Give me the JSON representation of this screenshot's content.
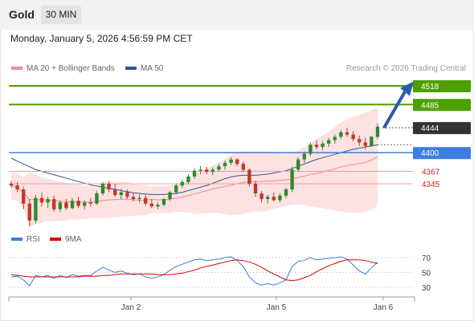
{
  "header": {
    "instrument": "Gold",
    "timeframe": "30 MIN",
    "datetime": "Monday, January 5, 2026 4:56:59 PM CET"
  },
  "legend": {
    "ma20": {
      "label": "MA 20 + Bollinger Bands",
      "color": "#f28b8b"
    },
    "ma50": {
      "label": "MA 50",
      "color": "#2f5597"
    },
    "source": "Research © 2026 Trading Central"
  },
  "colors": {
    "up_candle": "#2e8b2e",
    "down_candle": "#c0392b",
    "target_green": "#4da000",
    "pivot_blue": "#3d7de0",
    "support_red": "#d02020",
    "current_price": "#333333",
    "arrow": "#2a5caa",
    "bands_fill": "#fde2e2",
    "rsi": "#3d7de0",
    "rsi_ma": "#e00000"
  },
  "levels": [
    {
      "value": 4518,
      "label": "4518",
      "kind": "target"
    },
    {
      "value": 4485,
      "label": "4485",
      "kind": "target"
    },
    {
      "value": 4444,
      "label": "4444",
      "kind": "current"
    },
    {
      "value": 4400,
      "label": "4400",
      "kind": "pivot"
    },
    {
      "value": 4367,
      "label": "4367",
      "kind": "support"
    },
    {
      "value": 4345,
      "label": "4345",
      "kind": "support"
    }
  ],
  "rsi_panel": {
    "rsi_label": "RSI",
    "ma_label": "9MA",
    "ticks": [
      70,
      50,
      30
    ]
  },
  "x_axis": {
    "labels": [
      "Jan 2",
      "Jan 5",
      "Jan 6"
    ]
  },
  "chart_data": {
    "type": "candlestick",
    "title": "",
    "xlabel": "",
    "ylabel": "",
    "ylim": [
      4250,
      4535
    ],
    "grid": false,
    "legend_position": "top-left",
    "candles": [
      [
        4345,
        4350,
        4338,
        4342
      ],
      [
        4342,
        4348,
        4330,
        4335
      ],
      [
        4335,
        4340,
        4300,
        4310
      ],
      [
        4310,
        4318,
        4270,
        4280
      ],
      [
        4280,
        4325,
        4275,
        4320
      ],
      [
        4320,
        4330,
        4305,
        4312
      ],
      [
        4312,
        4322,
        4302,
        4318
      ],
      [
        4318,
        4324,
        4296,
        4300
      ],
      [
        4300,
        4315,
        4295,
        4312
      ],
      [
        4312,
        4318,
        4298,
        4302
      ],
      [
        4302,
        4320,
        4300,
        4315
      ],
      [
        4315,
        4322,
        4302,
        4306
      ],
      [
        4306,
        4316,
        4300,
        4312
      ],
      [
        4312,
        4320,
        4305,
        4310
      ],
      [
        4310,
        4332,
        4308,
        4328
      ],
      [
        4328,
        4348,
        4324,
        4345
      ],
      [
        4345,
        4350,
        4330,
        4335
      ],
      [
        4335,
        4345,
        4322,
        4325
      ],
      [
        4325,
        4336,
        4318,
        4330
      ],
      [
        4330,
        4335,
        4318,
        4322
      ],
      [
        4322,
        4330,
        4314,
        4318
      ],
      [
        4318,
        4326,
        4312,
        4320
      ],
      [
        4320,
        4325,
        4306,
        4310
      ],
      [
        4310,
        4318,
        4302,
        4305
      ],
      [
        4305,
        4312,
        4300,
        4308
      ],
      [
        4308,
        4320,
        4305,
        4318
      ],
      [
        4318,
        4332,
        4315,
        4330
      ],
      [
        4330,
        4345,
        4326,
        4342
      ],
      [
        4342,
        4352,
        4338,
        4348
      ],
      [
        4348,
        4362,
        4344,
        4358
      ],
      [
        4358,
        4372,
        4354,
        4368
      ],
      [
        4368,
        4376,
        4362,
        4370
      ],
      [
        4370,
        4375,
        4362,
        4366
      ],
      [
        4366,
        4374,
        4360,
        4370
      ],
      [
        4370,
        4380,
        4366,
        4376
      ],
      [
        4376,
        4386,
        4370,
        4382
      ],
      [
        4382,
        4392,
        4378,
        4388
      ],
      [
        4388,
        4390,
        4376,
        4380
      ],
      [
        4380,
        4384,
        4366,
        4370
      ],
      [
        4370,
        4372,
        4340,
        4345
      ],
      [
        4345,
        4350,
        4322,
        4328
      ],
      [
        4328,
        4332,
        4312,
        4318
      ],
      [
        4318,
        4326,
        4310,
        4322
      ],
      [
        4322,
        4330,
        4314,
        4316
      ],
      [
        4316,
        4328,
        4312,
        4324
      ],
      [
        4324,
        4338,
        4320,
        4335
      ],
      [
        4335,
        4375,
        4330,
        4370
      ],
      [
        4370,
        4392,
        4366,
        4388
      ],
      [
        4388,
        4402,
        4382,
        4398
      ],
      [
        4398,
        4418,
        4394,
        4414
      ],
      [
        4414,
        4422,
        4406,
        4410
      ],
      [
        4410,
        4420,
        4404,
        4416
      ],
      [
        4416,
        4426,
        4410,
        4422
      ],
      [
        4422,
        4432,
        4416,
        4428
      ],
      [
        4428,
        4440,
        4424,
        4436
      ],
      [
        4436,
        4444,
        4428,
        4432
      ],
      [
        4432,
        4438,
        4420,
        4424
      ],
      [
        4424,
        4430,
        4412,
        4418
      ],
      [
        4418,
        4426,
        4406,
        4412
      ],
      [
        4412,
        4430,
        4410,
        4428
      ],
      [
        4428,
        4452,
        4424,
        4446
      ]
    ],
    "ma50": [
      4390,
      4385,
      4380,
      4375,
      4370,
      4367,
      4364,
      4361,
      4358,
      4355,
      4352,
      4349,
      4346,
      4343,
      4341,
      4339,
      4337,
      4335,
      4333,
      4331,
      4329,
      4328,
      4327,
      4326,
      4326,
      4326,
      4327,
      4328,
      4330,
      4333,
      4336,
      4339,
      4342,
      4346,
      4350,
      4354,
      4357,
      4359,
      4360,
      4360,
      4360,
      4361,
      4362,
      4364,
      4366,
      4368,
      4372,
      4376,
      4380,
      4384,
      4388,
      4391,
      4394,
      4397,
      4400,
      4403,
      4406,
      4408,
      4410,
      4412,
      4414
    ],
    "rsi_values": [
      44,
      45,
      40,
      32,
      46,
      44,
      46,
      42,
      46,
      43,
      47,
      45,
      46,
      46,
      52,
      57,
      53,
      50,
      52,
      49,
      47,
      48,
      44,
      42,
      44,
      47,
      53,
      58,
      61,
      64,
      67,
      68,
      66,
      67,
      68,
      70,
      71,
      66,
      58,
      44,
      36,
      33,
      35,
      33,
      36,
      40,
      58,
      65,
      66,
      70,
      67,
      68,
      69,
      70,
      71,
      68,
      60,
      52,
      48,
      56,
      64
    ],
    "rsi_ma": [
      47,
      46,
      45,
      44,
      44,
      44,
      44,
      44,
      44,
      44,
      44,
      44,
      45,
      45,
      45,
      46,
      46,
      47,
      48,
      48,
      48,
      48,
      48,
      48,
      47,
      47,
      47,
      48,
      49,
      51,
      53,
      56,
      58,
      60,
      62,
      64,
      66,
      67,
      66,
      64,
      61,
      57,
      52,
      48,
      44,
      40,
      39,
      40,
      43,
      46,
      51,
      55,
      59,
      62,
      65,
      67,
      67,
      67,
      66,
      64,
      62
    ]
  }
}
